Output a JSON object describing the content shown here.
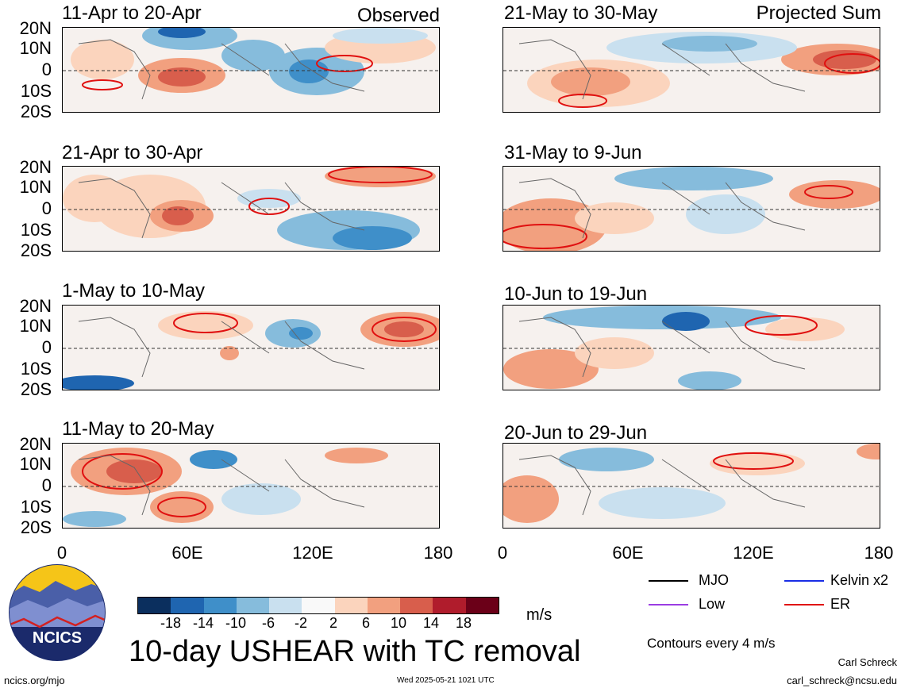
{
  "header": {
    "observed": "Observed",
    "projected": "Projected Sum"
  },
  "panels": [
    {
      "title": "11-Apr to 20-Apr"
    },
    {
      "title": "21-Apr to 30-Apr"
    },
    {
      "title": "1-May to 10-May"
    },
    {
      "title": "11-May to 20-May"
    },
    {
      "title": "21-May to 30-May"
    },
    {
      "title": "31-May to 9-Jun"
    },
    {
      "title": "10-Jun to 19-Jun"
    },
    {
      "title": "20-Jun to 29-Jun"
    }
  ],
  "yticks": [
    "20N",
    "10N",
    "0",
    "10S",
    "20S"
  ],
  "xticks": [
    "0",
    "60E",
    "120E",
    "180"
  ],
  "colorbar": {
    "labels": [
      "-18",
      "-14",
      "-10",
      "-6",
      "-2",
      "2",
      "6",
      "10",
      "14",
      "18"
    ],
    "colors": [
      "#0b2f5e",
      "#1f65b0",
      "#3f8fc9",
      "#86bcdc",
      "#c9e0ef",
      "#f9f9f9",
      "#fbd4bd",
      "#f2a07f",
      "#d85e4c",
      "#b01c2c",
      "#6b0018"
    ],
    "unit": "m/s"
  },
  "legend": {
    "items": [
      {
        "label": "MJO",
        "color": "#000000"
      },
      {
        "label": "Kelvin x2",
        "color": "#1a2ee6"
      },
      {
        "label": "Low",
        "color": "#9b3de3"
      },
      {
        "label": "ER",
        "color": "#e01010"
      }
    ],
    "note": "Contours every 4 m/s"
  },
  "main_title": "10-day USHEAR with TC removal",
  "logo_text": "NCICS",
  "footer": {
    "site": "ncics.org/mjo",
    "timestamp": "Wed 2025-05-21 1021 UTC",
    "author": "Carl Schreck",
    "email": "carl_schreck@ncsu.edu"
  }
}
